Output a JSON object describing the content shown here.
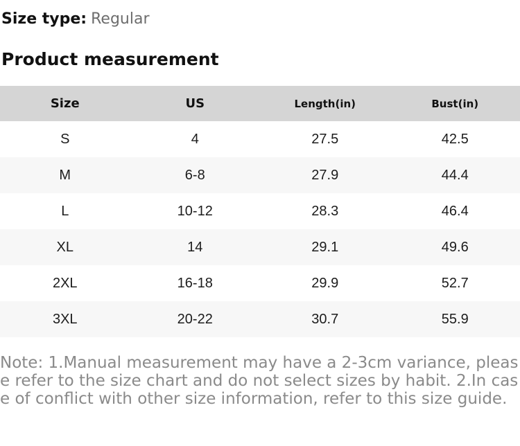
{
  "size_type": {
    "label": "Size type:",
    "value": "Regular"
  },
  "section_title": "Product measurement",
  "table": {
    "columns": [
      "Size",
      "US",
      "Length(in)",
      "Bust(in)"
    ],
    "rows": [
      [
        "S",
        "4",
        "27.5",
        "42.5"
      ],
      [
        "M",
        "6-8",
        "27.9",
        "44.4"
      ],
      [
        "L",
        "10-12",
        "28.3",
        "46.4"
      ],
      [
        "XL",
        "14",
        "29.1",
        "49.6"
      ],
      [
        "2XL",
        "16-18",
        "29.9",
        "52.7"
      ],
      [
        "3XL",
        "20-22",
        "30.7",
        "55.9"
      ]
    ]
  },
  "note": "Note: 1.Manual measurement may have a 2-3cm variance, please refer to the size chart and do not select sizes by habit. 2.In case of conflict with other size information, refer to this size guide.",
  "colors": {
    "header_bg": "#d5d5d5",
    "row_alt_bg": "#f7f7f7",
    "cell_text": "#1c1c1c",
    "size_type_value": "#6d6d6d",
    "note_text": "#8a8a8a"
  }
}
